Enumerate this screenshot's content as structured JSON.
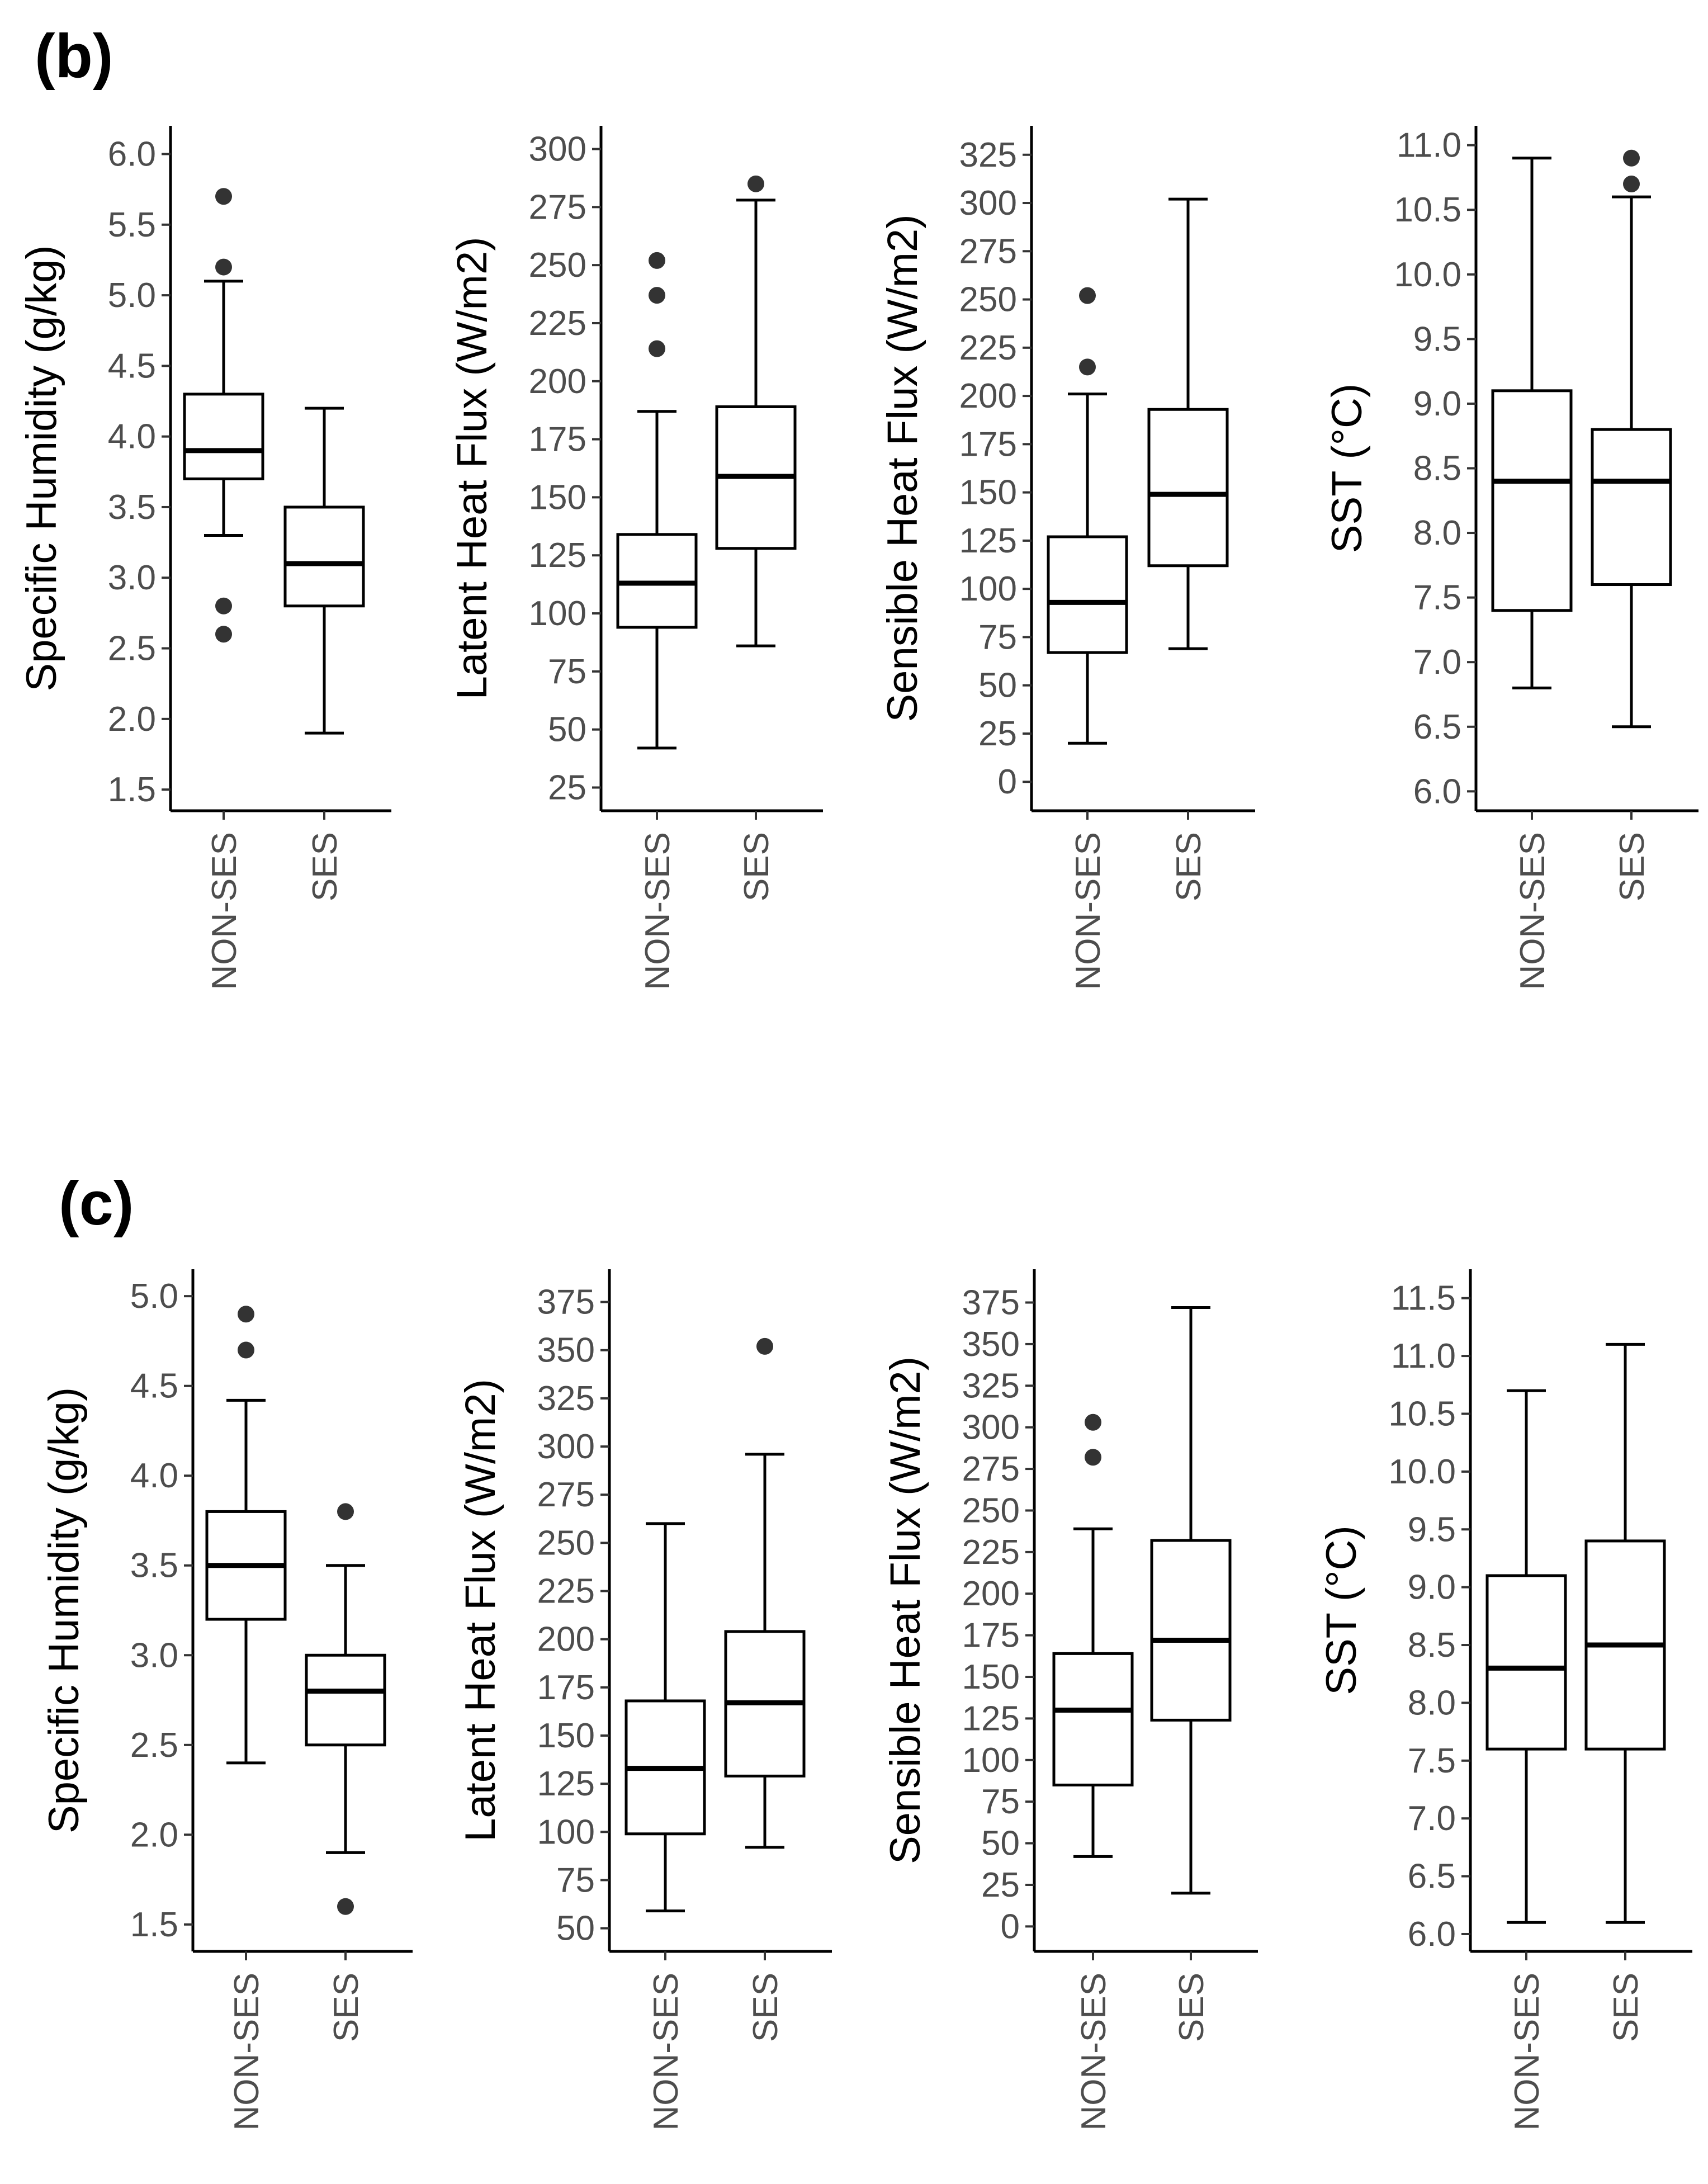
{
  "panels": [
    {
      "label": "(b)",
      "charts": [
        {
          "type": "boxplot",
          "ylabel": "Specific Humidity (g/kg)",
          "ylim": [
            1.35,
            6.2
          ],
          "yticks": [
            1.5,
            2.0,
            2.5,
            3.0,
            3.5,
            4.0,
            4.5,
            5.0,
            5.5,
            6.0
          ],
          "tick_decimals": 1,
          "categories": [
            "NON-SES",
            "SES"
          ],
          "boxes": [
            {
              "whisker_low": 3.3,
              "q1": 3.7,
              "median": 3.9,
              "q3": 4.3,
              "whisker_high": 5.1,
              "outliers": [
                5.7,
                5.2,
                2.8,
                2.6
              ]
            },
            {
              "whisker_low": 1.9,
              "q1": 2.8,
              "median": 3.1,
              "q3": 3.5,
              "whisker_high": 4.2,
              "outliers": []
            }
          ]
        },
        {
          "type": "boxplot",
          "ylabel": "Latent Heat Flux (W/m2)",
          "ylim": [
            15,
            310
          ],
          "yticks": [
            25,
            50,
            75,
            100,
            125,
            150,
            175,
            200,
            225,
            250,
            275,
            300
          ],
          "tick_decimals": 0,
          "categories": [
            "NON-SES",
            "SES"
          ],
          "boxes": [
            {
              "whisker_low": 42,
              "q1": 94,
              "median": 113,
              "q3": 134,
              "whisker_high": 187,
              "outliers": [
                252,
                237,
                214
              ]
            },
            {
              "whisker_low": 86,
              "q1": 128,
              "median": 159,
              "q3": 189,
              "whisker_high": 278,
              "outliers": [
                285
              ]
            }
          ]
        },
        {
          "type": "boxplot",
          "ylabel": "Sensible Heat Flux (W/m2)",
          "ylim": [
            -15,
            340
          ],
          "yticks": [
            0,
            25,
            50,
            75,
            100,
            125,
            150,
            175,
            200,
            225,
            250,
            275,
            300,
            325
          ],
          "tick_decimals": 0,
          "categories": [
            "NON-SES",
            "SES"
          ],
          "boxes": [
            {
              "whisker_low": 20,
              "q1": 67,
              "median": 93,
              "q3": 127,
              "whisker_high": 201,
              "outliers": [
                252,
                215
              ]
            },
            {
              "whisker_low": 69,
              "q1": 112,
              "median": 149,
              "q3": 193,
              "whisker_high": 302,
              "outliers": []
            }
          ]
        },
        {
          "type": "boxplot",
          "ylabel": "SST (°C)",
          "ylim": [
            5.85,
            11.15
          ],
          "yticks": [
            6.0,
            6.5,
            7.0,
            7.5,
            8.0,
            8.5,
            9.0,
            9.5,
            10.0,
            10.5,
            11.0
          ],
          "tick_decimals": 1,
          "categories": [
            "NON-SES",
            "SES"
          ],
          "boxes": [
            {
              "whisker_low": 6.8,
              "q1": 7.4,
              "median": 8.4,
              "q3": 9.1,
              "whisker_high": 10.9,
              "outliers": []
            },
            {
              "whisker_low": 6.5,
              "q1": 7.6,
              "median": 8.4,
              "q3": 8.8,
              "whisker_high": 10.6,
              "outliers": [
                10.9,
                10.7
              ]
            }
          ]
        }
      ]
    },
    {
      "label": "(c)",
      "charts": [
        {
          "type": "boxplot",
          "ylabel": "Specific Humidity (g/kg)",
          "ylim": [
            1.35,
            5.15
          ],
          "yticks": [
            1.5,
            2.0,
            2.5,
            3.0,
            3.5,
            4.0,
            4.5,
            5.0
          ],
          "tick_decimals": 1,
          "categories": [
            "NON-SES",
            "SES"
          ],
          "boxes": [
            {
              "whisker_low": 2.4,
              "q1": 3.2,
              "median": 3.5,
              "q3": 3.8,
              "whisker_high": 4.42,
              "outliers": [
                4.9,
                4.7
              ]
            },
            {
              "whisker_low": 1.9,
              "q1": 2.5,
              "median": 2.8,
              "q3": 3.0,
              "whisker_high": 3.5,
              "outliers": [
                3.8,
                1.6
              ]
            }
          ]
        },
        {
          "type": "boxplot",
          "ylabel": "Latent Heat Flux (W/m2)",
          "ylim": [
            38,
            392
          ],
          "yticks": [
            50,
            75,
            100,
            125,
            150,
            175,
            200,
            225,
            250,
            275,
            300,
            325,
            350,
            375
          ],
          "tick_decimals": 0,
          "categories": [
            "NON-SES",
            "SES"
          ],
          "boxes": [
            {
              "whisker_low": 59,
              "q1": 99,
              "median": 133,
              "q3": 168,
              "whisker_high": 260,
              "outliers": []
            },
            {
              "whisker_low": 92,
              "q1": 129,
              "median": 167,
              "q3": 204,
              "whisker_high": 296,
              "outliers": [
                352
              ]
            }
          ]
        },
        {
          "type": "boxplot",
          "ylabel": "Sensible Heat Flux (W/m2)",
          "ylim": [
            -15,
            395
          ],
          "yticks": [
            0,
            25,
            50,
            75,
            100,
            125,
            150,
            175,
            200,
            225,
            250,
            275,
            300,
            325,
            350,
            375
          ],
          "tick_decimals": 0,
          "categories": [
            "NON-SES",
            "SES"
          ],
          "boxes": [
            {
              "whisker_low": 42,
              "q1": 85,
              "median": 130,
              "q3": 164,
              "whisker_high": 239,
              "outliers": [
                303,
                282
              ]
            },
            {
              "whisker_low": 20,
              "q1": 124,
              "median": 172,
              "q3": 232,
              "whisker_high": 372,
              "outliers": []
            }
          ]
        },
        {
          "type": "boxplot",
          "ylabel": "SST (°C)",
          "ylim": [
            5.85,
            11.75
          ],
          "yticks": [
            6.0,
            6.5,
            7.0,
            7.5,
            8.0,
            8.5,
            9.0,
            9.5,
            10.0,
            10.5,
            11.0,
            11.5
          ],
          "tick_decimals": 1,
          "categories": [
            "NON-SES",
            "SES"
          ],
          "boxes": [
            {
              "whisker_low": 6.1,
              "q1": 7.6,
              "median": 8.3,
              "q3": 9.1,
              "whisker_high": 10.7,
              "outliers": []
            },
            {
              "whisker_low": 6.1,
              "q1": 7.6,
              "median": 8.5,
              "q3": 9.4,
              "whisker_high": 11.1,
              "outliers": []
            }
          ]
        }
      ]
    }
  ]
}
